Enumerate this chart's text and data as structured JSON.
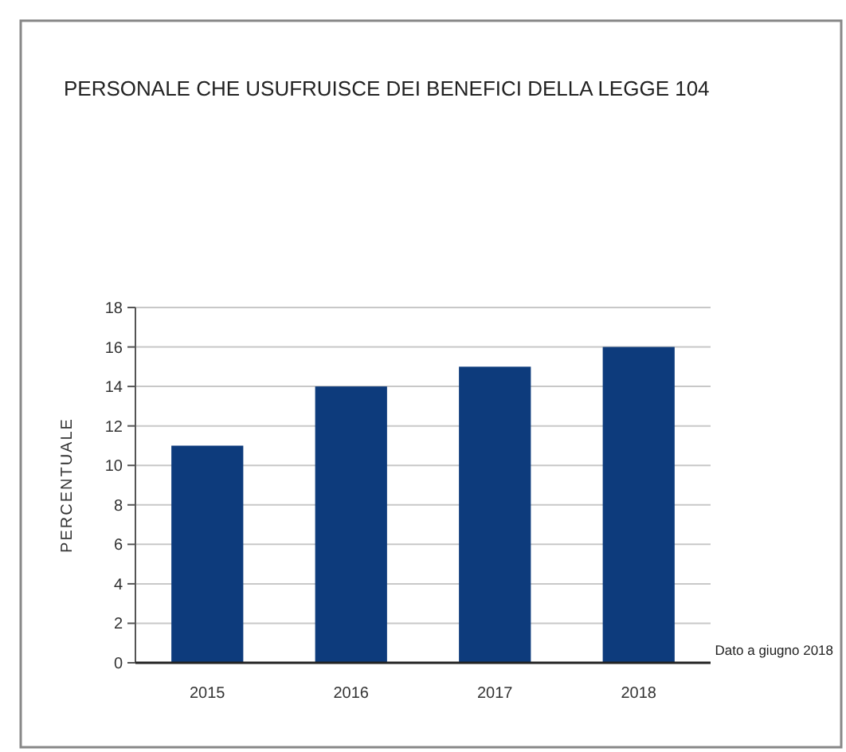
{
  "chart_data": {
    "type": "bar",
    "title": "PERSONALE CHE USUFRUISCE DEI BENEFICI DELLA LEGGE 104",
    "ylabel": "PERCENTUALE",
    "categories": [
      "2015",
      "2016",
      "2017",
      "2018"
    ],
    "values": [
      11,
      14,
      15,
      16
    ],
    "color": "#0d3b7c",
    "ylim": [
      0,
      18
    ],
    "yticks": [
      0,
      2,
      4,
      6,
      8,
      10,
      12,
      14,
      16,
      18
    ],
    "grid": "y",
    "annotations": [
      "Dato a giugno 2018"
    ]
  }
}
